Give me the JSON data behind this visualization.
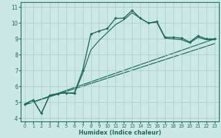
{
  "xlabel": "Humidex (Indice chaleur)",
  "bg_color": "#cce8e6",
  "grid_color": "#aacfcd",
  "line_color": "#1a6b5a",
  "xlim": [
    -0.5,
    23.5
  ],
  "ylim": [
    3.8,
    11.3
  ],
  "yticks": [
    4,
    5,
    6,
    7,
    8,
    9,
    10,
    11
  ],
  "xticks": [
    0,
    1,
    2,
    3,
    4,
    5,
    6,
    7,
    8,
    9,
    10,
    11,
    12,
    13,
    14,
    15,
    16,
    17,
    18,
    19,
    20,
    21,
    22,
    23
  ],
  "line_with_markers": {
    "x": [
      0,
      1,
      2,
      3,
      4,
      5,
      6,
      7,
      8,
      9,
      10,
      11,
      12,
      13,
      14,
      15,
      16,
      17,
      18,
      19,
      20,
      21,
      22,
      23
    ],
    "y": [
      4.9,
      5.15,
      4.3,
      5.45,
      5.55,
      5.6,
      5.6,
      7.0,
      9.3,
      9.5,
      9.65,
      10.3,
      10.3,
      10.8,
      10.3,
      10.0,
      10.1,
      9.1,
      9.1,
      9.05,
      8.8,
      9.2,
      9.0,
      9.0
    ]
  },
  "line_smooth": {
    "x": [
      0,
      1,
      2,
      3,
      4,
      5,
      6,
      7,
      8,
      9,
      10,
      11,
      12,
      13,
      14,
      15,
      16,
      17,
      18,
      19,
      20,
      21,
      22,
      23
    ],
    "y": [
      4.9,
      5.15,
      4.3,
      5.45,
      5.55,
      5.6,
      5.55,
      6.8,
      8.3,
      8.9,
      9.4,
      9.9,
      10.2,
      10.65,
      10.3,
      10.0,
      10.05,
      9.05,
      9.0,
      8.95,
      8.75,
      9.1,
      8.95,
      8.95
    ]
  },
  "line_trend1": {
    "x": [
      0,
      23
    ],
    "y": [
      4.85,
      9.0
    ]
  },
  "line_trend2": {
    "x": [
      0,
      23
    ],
    "y": [
      4.85,
      8.7
    ]
  }
}
